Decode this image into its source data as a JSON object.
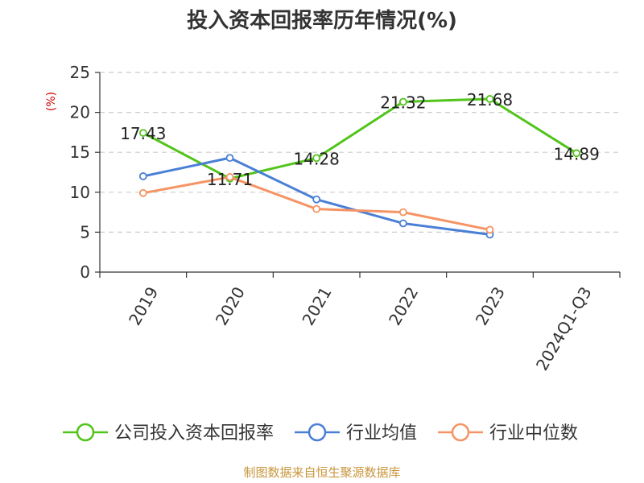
{
  "chart_data": {
    "type": "line",
    "title": "投入资本回报率历年情况(%)",
    "ylabel": "(%)",
    "categories": [
      "2019",
      "2020",
      "2021",
      "2022",
      "2023",
      "2024Q1-Q3"
    ],
    "ylim": [
      0,
      25
    ],
    "yticks": [
      0,
      5,
      10,
      15,
      20,
      25
    ],
    "grid": true,
    "legend_position": "bottom",
    "series": [
      {
        "name": "公司投入资本回报率",
        "color": "#52c41a",
        "values": [
          17.43,
          11.71,
          14.28,
          21.32,
          21.68,
          14.89
        ],
        "show_labels": true
      },
      {
        "name": "行业均值",
        "color": "#4a7fd6",
        "values": [
          12.0,
          14.3,
          9.1,
          6.1,
          4.7,
          null
        ],
        "show_labels": false
      },
      {
        "name": "行业中位数",
        "color": "#f59464",
        "values": [
          9.9,
          11.9,
          7.9,
          7.5,
          5.3,
          null
        ],
        "show_labels": false
      }
    ]
  },
  "source": "制图数据来自恒生聚源数据库",
  "colors": {
    "source": "#c8963c",
    "ylabel": "#cc0000",
    "axis": "#333333",
    "grid": "#cccccc"
  }
}
